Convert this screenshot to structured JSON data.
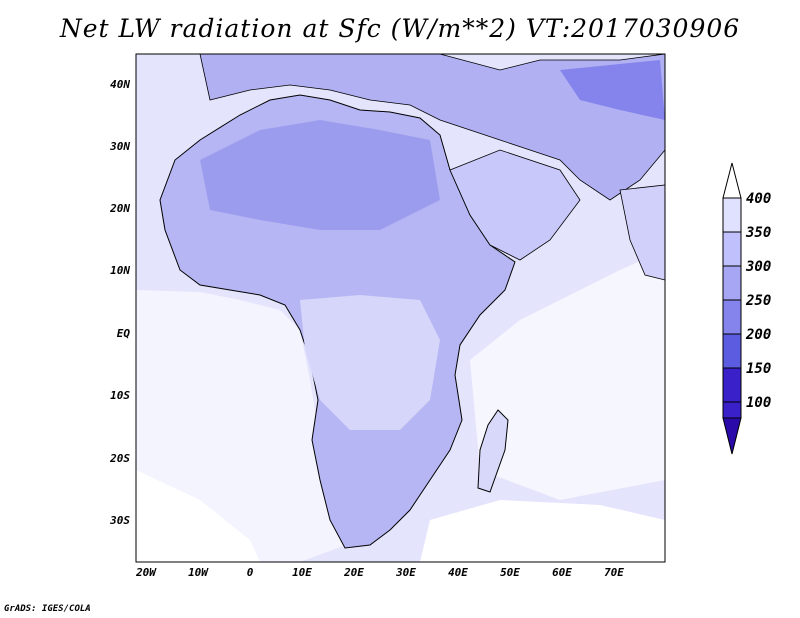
{
  "title": "Net LW radiation at Sfc (W/m**2) VT:2017030906",
  "credit": "GrADS: IGES/COLA",
  "map": {
    "lat_labels": [
      "40N",
      "30N",
      "20N",
      "10N",
      "EQ",
      "10S",
      "20S",
      "30S"
    ],
    "lon_labels": [
      "20W",
      "10W",
      "0",
      "10E",
      "20E",
      "30E",
      "40E",
      "50E",
      "60E",
      "70E"
    ]
  },
  "colorbar": {
    "labels": [
      "400",
      "350",
      "300",
      "250",
      "200",
      "150",
      "100"
    ],
    "colors": [
      "#ffffff",
      "#e0e0ff",
      "#c0c0fc",
      "#a6a6f4",
      "#8484ec",
      "#5c5ce0",
      "#3a20c8",
      "#2a0aa8"
    ]
  }
}
